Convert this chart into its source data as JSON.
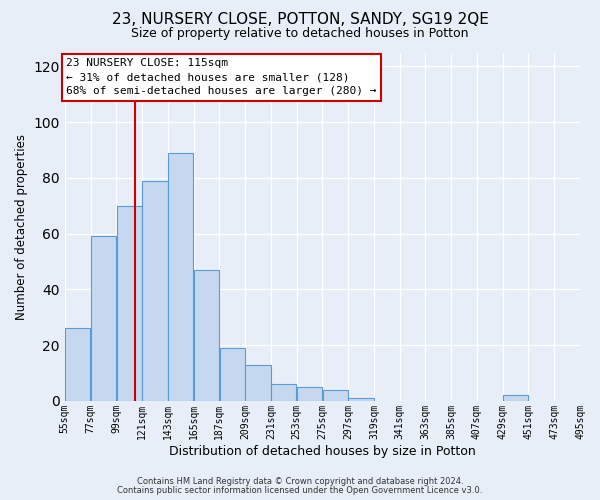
{
  "title": "23, NURSERY CLOSE, POTTON, SANDY, SG19 2QE",
  "subtitle": "Size of property relative to detached houses in Potton",
  "xlabel": "Distribution of detached houses by size in Potton",
  "ylabel": "Number of detached properties",
  "bar_values": [
    26,
    59,
    70,
    79,
    89,
    47,
    19,
    13,
    6,
    5,
    4,
    1,
    0,
    0,
    0,
    0,
    0,
    2,
    0,
    0
  ],
  "bin_edges": [
    55,
    77,
    99,
    121,
    143,
    165,
    187,
    209,
    231,
    253,
    275,
    297,
    319,
    341,
    363,
    385,
    407,
    429,
    451,
    473,
    495
  ],
  "tick_labels": [
    "55sqm",
    "77sqm",
    "99sqm",
    "121sqm",
    "143sqm",
    "165sqm",
    "187sqm",
    "209sqm",
    "231sqm",
    "253sqm",
    "275sqm",
    "297sqm",
    "319sqm",
    "341sqm",
    "363sqm",
    "385sqm",
    "407sqm",
    "429sqm",
    "451sqm",
    "473sqm",
    "495sqm"
  ],
  "bar_color": "#c5d8f0",
  "bar_edge_color": "#5b9bd5",
  "vline_x": 115,
  "vline_color": "#cc0000",
  "ylim": [
    0,
    125
  ],
  "yticks": [
    0,
    20,
    40,
    60,
    80,
    100,
    120
  ],
  "annotation_title": "23 NURSERY CLOSE: 115sqm",
  "annotation_line1": "← 31% of detached houses are smaller (128)",
  "annotation_line2": "68% of semi-detached houses are larger (280) →",
  "annotation_box_color": "#ffffff",
  "annotation_box_edge": "#cc0000",
  "footer1": "Contains HM Land Registry data © Crown copyright and database right 2024.",
  "footer2": "Contains public sector information licensed under the Open Government Licence v3.0.",
  "background_color": "#e8eef8",
  "plot_bg_color": "#e8eef8",
  "grid_color": "#ffffff",
  "title_fontsize": 11,
  "subtitle_fontsize": 9
}
